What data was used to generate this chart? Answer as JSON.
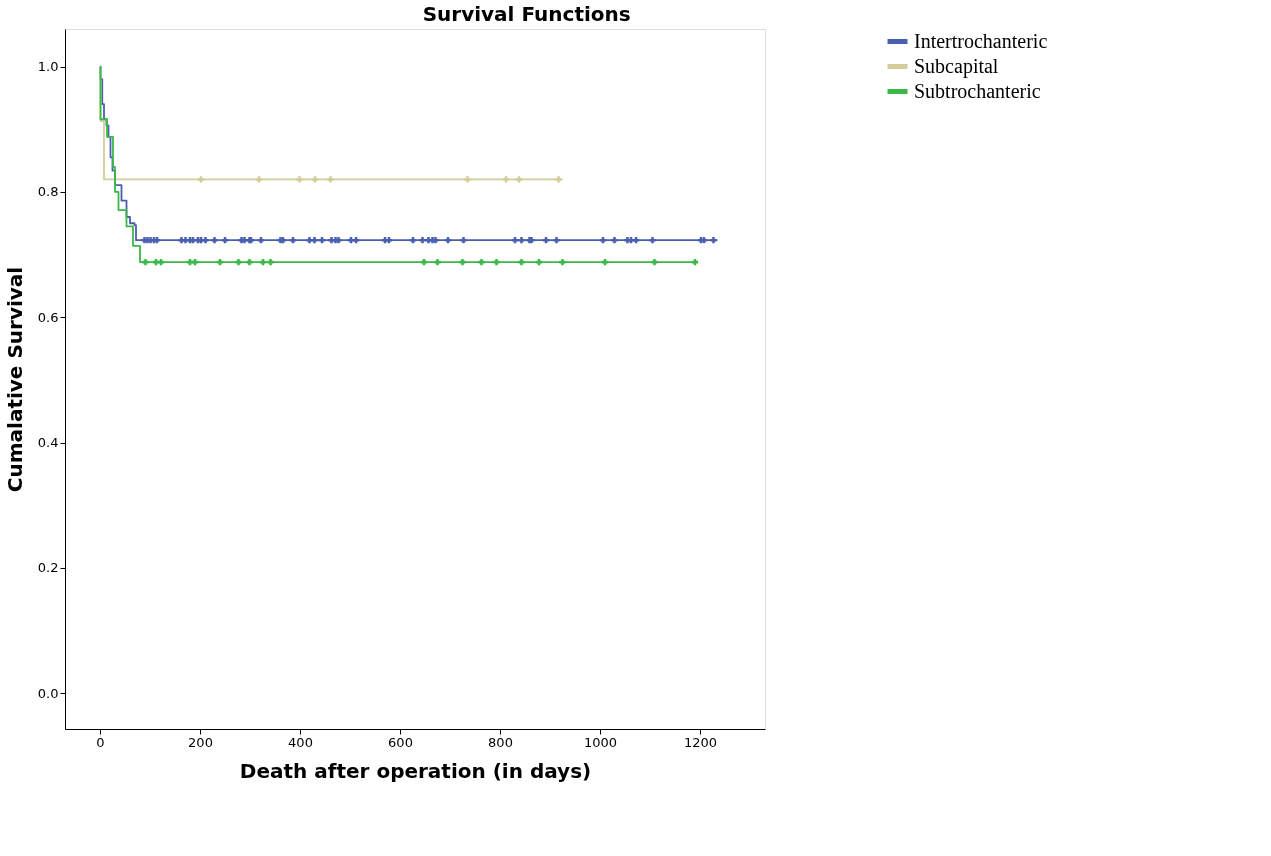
{
  "chart_data": {
    "type": "step",
    "title": "Survival Functions",
    "xlabel": "Death after operation (in days)",
    "ylabel": "Cumalative Survival",
    "xlim": [
      -70,
      1330
    ],
    "ylim": [
      -0.057,
      1.06
    ],
    "xticks": [
      0,
      200,
      400,
      600,
      800,
      1000,
      1200
    ],
    "yticks": [
      {
        "value": 0,
        "label": "0.0"
      },
      0.2,
      0.4,
      0.6,
      0.8,
      {
        "value": 1,
        "label": "1.0"
      }
    ],
    "grid": false,
    "legend": "right",
    "line_style": "solid",
    "series": [
      {
        "name": "Intertrochanteric",
        "color": "#4a5fb0",
        "type": "step",
        "x": [
          0,
          1,
          4.5,
          8,
          13,
          17,
          21,
          25,
          30,
          43,
          53,
          60,
          69,
          72,
          1235
        ],
        "values": [
          1.0,
          0.98,
          0.94,
          0.916,
          0.906,
          0.888,
          0.855,
          0.834,
          0.811,
          0.786,
          0.76,
          0.75,
          0.747,
          0.723,
          0.723
        ]
      },
      {
        "name": "Subcapital",
        "color": "#d4cc9a",
        "type": "step",
        "x": [
          0,
          1,
          8,
          925
        ],
        "values": [
          1.0,
          0.913,
          0.82,
          0.82
        ]
      },
      {
        "name": "Subtrochanteric",
        "color": "#3cb84a",
        "type": "step",
        "x": [
          0,
          1,
          14,
          26,
          30,
          37,
          53,
          66,
          80,
          1192
        ],
        "values": [
          1.0,
          0.916,
          0.888,
          0.84,
          0.8,
          0.771,
          0.745,
          0.714,
          0.688,
          0.688
        ]
      },
      {
        "color": "#4a5fb0",
        "type": "scatter",
        "marker": "cross",
        "x": [
          89,
          95,
          101,
          108,
          114,
          163,
          171,
          180,
          186,
          196,
          202,
          211,
          229,
          250,
          283,
          289,
          299,
          302,
          322,
          361,
          366,
          386,
          419,
          429,
          444,
          463,
          471,
          477,
          502,
          512,
          570,
          578,
          626,
          645,
          657,
          665,
          671,
          696,
          727,
          830,
          843,
          859,
          863,
          892,
          913,
          1006,
          1029,
          1055,
          1062,
          1072,
          1105,
          1202,
          1208,
          1227
        ],
        "values": [
          0.723,
          0.723,
          0.723,
          0.723,
          0.723,
          0.723,
          0.723,
          0.723,
          0.723,
          0.723,
          0.723,
          0.723,
          0.723,
          0.723,
          0.723,
          0.723,
          0.723,
          0.723,
          0.723,
          0.723,
          0.723,
          0.723,
          0.723,
          0.723,
          0.723,
          0.723,
          0.723,
          0.723,
          0.723,
          0.723,
          0.723,
          0.723,
          0.723,
          0.723,
          0.723,
          0.723,
          0.723,
          0.723,
          0.723,
          0.723,
          0.723,
          0.723,
          0.723,
          0.723,
          0.723,
          0.723,
          0.723,
          0.723,
          0.723,
          0.723,
          0.723,
          0.723,
          0.723,
          0.723
        ]
      },
      {
        "color": "#d4cc9a",
        "type": "scatter",
        "marker": "cross",
        "x": [
          202,
          318,
          399,
          430,
          461,
          735,
          812,
          838,
          917
        ],
        "values": [
          0.82,
          0.82,
          0.82,
          0.82,
          0.82,
          0.82,
          0.82,
          0.82,
          0.82
        ]
      },
      {
        "color": "#3cb84a",
        "type": "scatter",
        "marker": "cross",
        "x": [
          91,
          112,
          122,
          180,
          190,
          240,
          277,
          299,
          326,
          341,
          648,
          675,
          725,
          763,
          793,
          843,
          878,
          925,
          1010,
          1109,
          1190
        ],
        "values": [
          0.688,
          0.688,
          0.688,
          0.688,
          0.688,
          0.688,
          0.688,
          0.688,
          0.688,
          0.688,
          0.688,
          0.688,
          0.688,
          0.688,
          0.688,
          0.688,
          0.688,
          0.688,
          0.688,
          0.688,
          0.688
        ]
      }
    ]
  }
}
